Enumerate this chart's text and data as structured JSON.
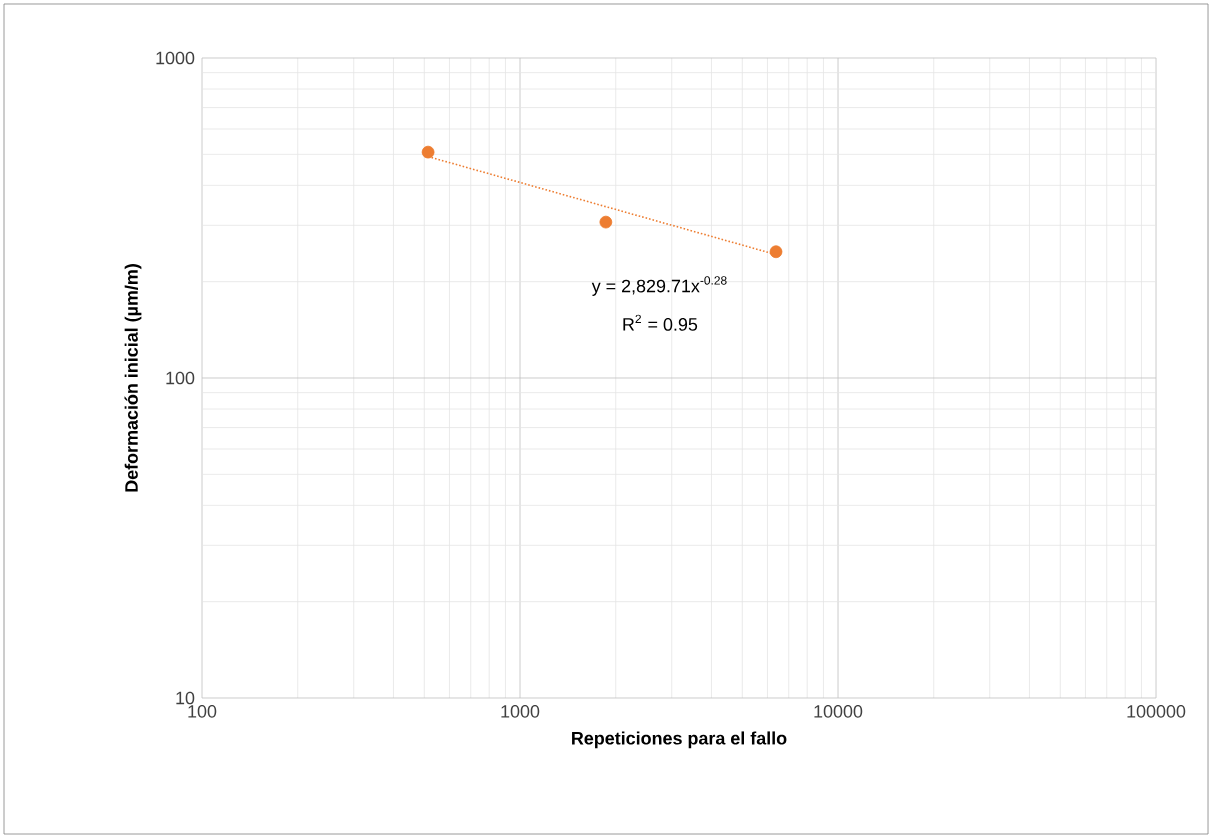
{
  "chart_data": {
    "type": "scatter",
    "xlabel": "Repeticiones para el fallo",
    "ylabel": "Deformación inicial (µm/m)",
    "log": "xy",
    "xlim": [
      100,
      100000
    ],
    "ylim": [
      10,
      1000
    ],
    "xticks": [
      100,
      1000,
      10000,
      100000
    ],
    "yticks": [
      10,
      100,
      1000
    ],
    "grid": true,
    "marker": "circle",
    "series": [
      {
        "color": "#ed7d31",
        "x": [
          514,
          1862,
          6383
        ],
        "values": [
          508,
          307,
          248
        ]
      },
      {
        "type": "line",
        "color": "#ed7d31",
        "line_style": "dotted",
        "marker": "none",
        "x": [
          514,
          6383
        ],
        "values": [
          492,
          243
        ]
      }
    ],
    "annotations": [
      "y = 2,829.71x$^{-0.28}$",
      "R$^{2}$ = 0.95"
    ]
  }
}
